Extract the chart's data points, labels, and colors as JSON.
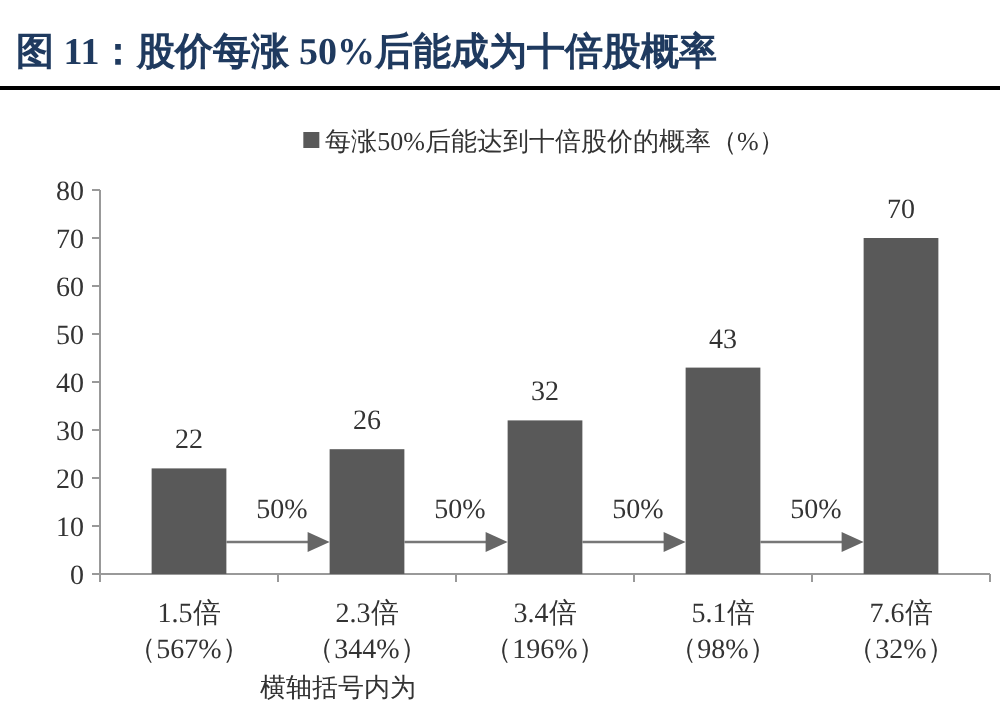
{
  "chart_data": {
    "type": "bar",
    "title": "图 11：股价每涨 50%后能成为十倍股概率",
    "categories": [
      "1.5倍（567%）",
      "2.3倍（344%）",
      "3.4倍（196%）",
      "5.1倍（98%）",
      "7.6倍（32%）"
    ],
    "series": [
      {
        "name": "每涨50%后能达到十倍股价的概率（%）",
        "color": "#595959",
        "values": [
          22,
          26,
          32,
          43,
          70
        ]
      }
    ],
    "xlabel": "横轴括号内为",
    "annotations": [
      "50%",
      "50%",
      "50%",
      "50%"
    ],
    "ylim": [
      0,
      80
    ],
    "yticks": [
      0,
      10,
      20,
      30,
      40,
      50,
      60,
      70,
      80
    ],
    "data_labels": true,
    "legend": "top",
    "grid": false
  }
}
